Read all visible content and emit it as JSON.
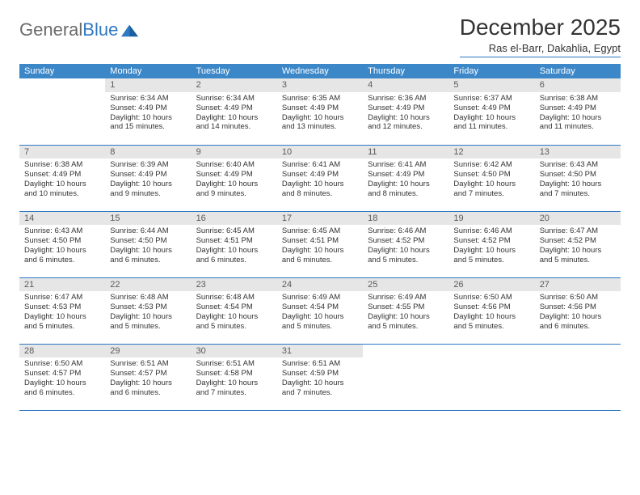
{
  "logo": {
    "text1": "General",
    "text2": "Blue"
  },
  "title": "December 2025",
  "subtitle": "Ras el-Barr, Dakahlia, Egypt",
  "colors": {
    "header_bg": "#3b87c8",
    "daynum_bg": "#e6e6e6",
    "rule": "#2f78c2",
    "text": "#333333"
  },
  "day_labels": [
    "Sunday",
    "Monday",
    "Tuesday",
    "Wednesday",
    "Thursday",
    "Friday",
    "Saturday"
  ],
  "weeks": [
    [
      {
        "n": "",
        "lines": []
      },
      {
        "n": "1",
        "lines": [
          "Sunrise: 6:34 AM",
          "Sunset: 4:49 PM",
          "Daylight: 10 hours and 15 minutes."
        ]
      },
      {
        "n": "2",
        "lines": [
          "Sunrise: 6:34 AM",
          "Sunset: 4:49 PM",
          "Daylight: 10 hours and 14 minutes."
        ]
      },
      {
        "n": "3",
        "lines": [
          "Sunrise: 6:35 AM",
          "Sunset: 4:49 PM",
          "Daylight: 10 hours and 13 minutes."
        ]
      },
      {
        "n": "4",
        "lines": [
          "Sunrise: 6:36 AM",
          "Sunset: 4:49 PM",
          "Daylight: 10 hours and 12 minutes."
        ]
      },
      {
        "n": "5",
        "lines": [
          "Sunrise: 6:37 AM",
          "Sunset: 4:49 PM",
          "Daylight: 10 hours and 11 minutes."
        ]
      },
      {
        "n": "6",
        "lines": [
          "Sunrise: 6:38 AM",
          "Sunset: 4:49 PM",
          "Daylight: 10 hours and 11 minutes."
        ]
      }
    ],
    [
      {
        "n": "7",
        "lines": [
          "Sunrise: 6:38 AM",
          "Sunset: 4:49 PM",
          "Daylight: 10 hours and 10 minutes."
        ]
      },
      {
        "n": "8",
        "lines": [
          "Sunrise: 6:39 AM",
          "Sunset: 4:49 PM",
          "Daylight: 10 hours and 9 minutes."
        ]
      },
      {
        "n": "9",
        "lines": [
          "Sunrise: 6:40 AM",
          "Sunset: 4:49 PM",
          "Daylight: 10 hours and 9 minutes."
        ]
      },
      {
        "n": "10",
        "lines": [
          "Sunrise: 6:41 AM",
          "Sunset: 4:49 PM",
          "Daylight: 10 hours and 8 minutes."
        ]
      },
      {
        "n": "11",
        "lines": [
          "Sunrise: 6:41 AM",
          "Sunset: 4:49 PM",
          "Daylight: 10 hours and 8 minutes."
        ]
      },
      {
        "n": "12",
        "lines": [
          "Sunrise: 6:42 AM",
          "Sunset: 4:50 PM",
          "Daylight: 10 hours and 7 minutes."
        ]
      },
      {
        "n": "13",
        "lines": [
          "Sunrise: 6:43 AM",
          "Sunset: 4:50 PM",
          "Daylight: 10 hours and 7 minutes."
        ]
      }
    ],
    [
      {
        "n": "14",
        "lines": [
          "Sunrise: 6:43 AM",
          "Sunset: 4:50 PM",
          "Daylight: 10 hours and 6 minutes."
        ]
      },
      {
        "n": "15",
        "lines": [
          "Sunrise: 6:44 AM",
          "Sunset: 4:50 PM",
          "Daylight: 10 hours and 6 minutes."
        ]
      },
      {
        "n": "16",
        "lines": [
          "Sunrise: 6:45 AM",
          "Sunset: 4:51 PM",
          "Daylight: 10 hours and 6 minutes."
        ]
      },
      {
        "n": "17",
        "lines": [
          "Sunrise: 6:45 AM",
          "Sunset: 4:51 PM",
          "Daylight: 10 hours and 6 minutes."
        ]
      },
      {
        "n": "18",
        "lines": [
          "Sunrise: 6:46 AM",
          "Sunset: 4:52 PM",
          "Daylight: 10 hours and 5 minutes."
        ]
      },
      {
        "n": "19",
        "lines": [
          "Sunrise: 6:46 AM",
          "Sunset: 4:52 PM",
          "Daylight: 10 hours and 5 minutes."
        ]
      },
      {
        "n": "20",
        "lines": [
          "Sunrise: 6:47 AM",
          "Sunset: 4:52 PM",
          "Daylight: 10 hours and 5 minutes."
        ]
      }
    ],
    [
      {
        "n": "21",
        "lines": [
          "Sunrise: 6:47 AM",
          "Sunset: 4:53 PM",
          "Daylight: 10 hours and 5 minutes."
        ]
      },
      {
        "n": "22",
        "lines": [
          "Sunrise: 6:48 AM",
          "Sunset: 4:53 PM",
          "Daylight: 10 hours and 5 minutes."
        ]
      },
      {
        "n": "23",
        "lines": [
          "Sunrise: 6:48 AM",
          "Sunset: 4:54 PM",
          "Daylight: 10 hours and 5 minutes."
        ]
      },
      {
        "n": "24",
        "lines": [
          "Sunrise: 6:49 AM",
          "Sunset: 4:54 PM",
          "Daylight: 10 hours and 5 minutes."
        ]
      },
      {
        "n": "25",
        "lines": [
          "Sunrise: 6:49 AM",
          "Sunset: 4:55 PM",
          "Daylight: 10 hours and 5 minutes."
        ]
      },
      {
        "n": "26",
        "lines": [
          "Sunrise: 6:50 AM",
          "Sunset: 4:56 PM",
          "Daylight: 10 hours and 5 minutes."
        ]
      },
      {
        "n": "27",
        "lines": [
          "Sunrise: 6:50 AM",
          "Sunset: 4:56 PM",
          "Daylight: 10 hours and 6 minutes."
        ]
      }
    ],
    [
      {
        "n": "28",
        "lines": [
          "Sunrise: 6:50 AM",
          "Sunset: 4:57 PM",
          "Daylight: 10 hours and 6 minutes."
        ]
      },
      {
        "n": "29",
        "lines": [
          "Sunrise: 6:51 AM",
          "Sunset: 4:57 PM",
          "Daylight: 10 hours and 6 minutes."
        ]
      },
      {
        "n": "30",
        "lines": [
          "Sunrise: 6:51 AM",
          "Sunset: 4:58 PM",
          "Daylight: 10 hours and 7 minutes."
        ]
      },
      {
        "n": "31",
        "lines": [
          "Sunrise: 6:51 AM",
          "Sunset: 4:59 PM",
          "Daylight: 10 hours and 7 minutes."
        ]
      },
      {
        "n": "",
        "lines": []
      },
      {
        "n": "",
        "lines": []
      },
      {
        "n": "",
        "lines": []
      }
    ]
  ]
}
